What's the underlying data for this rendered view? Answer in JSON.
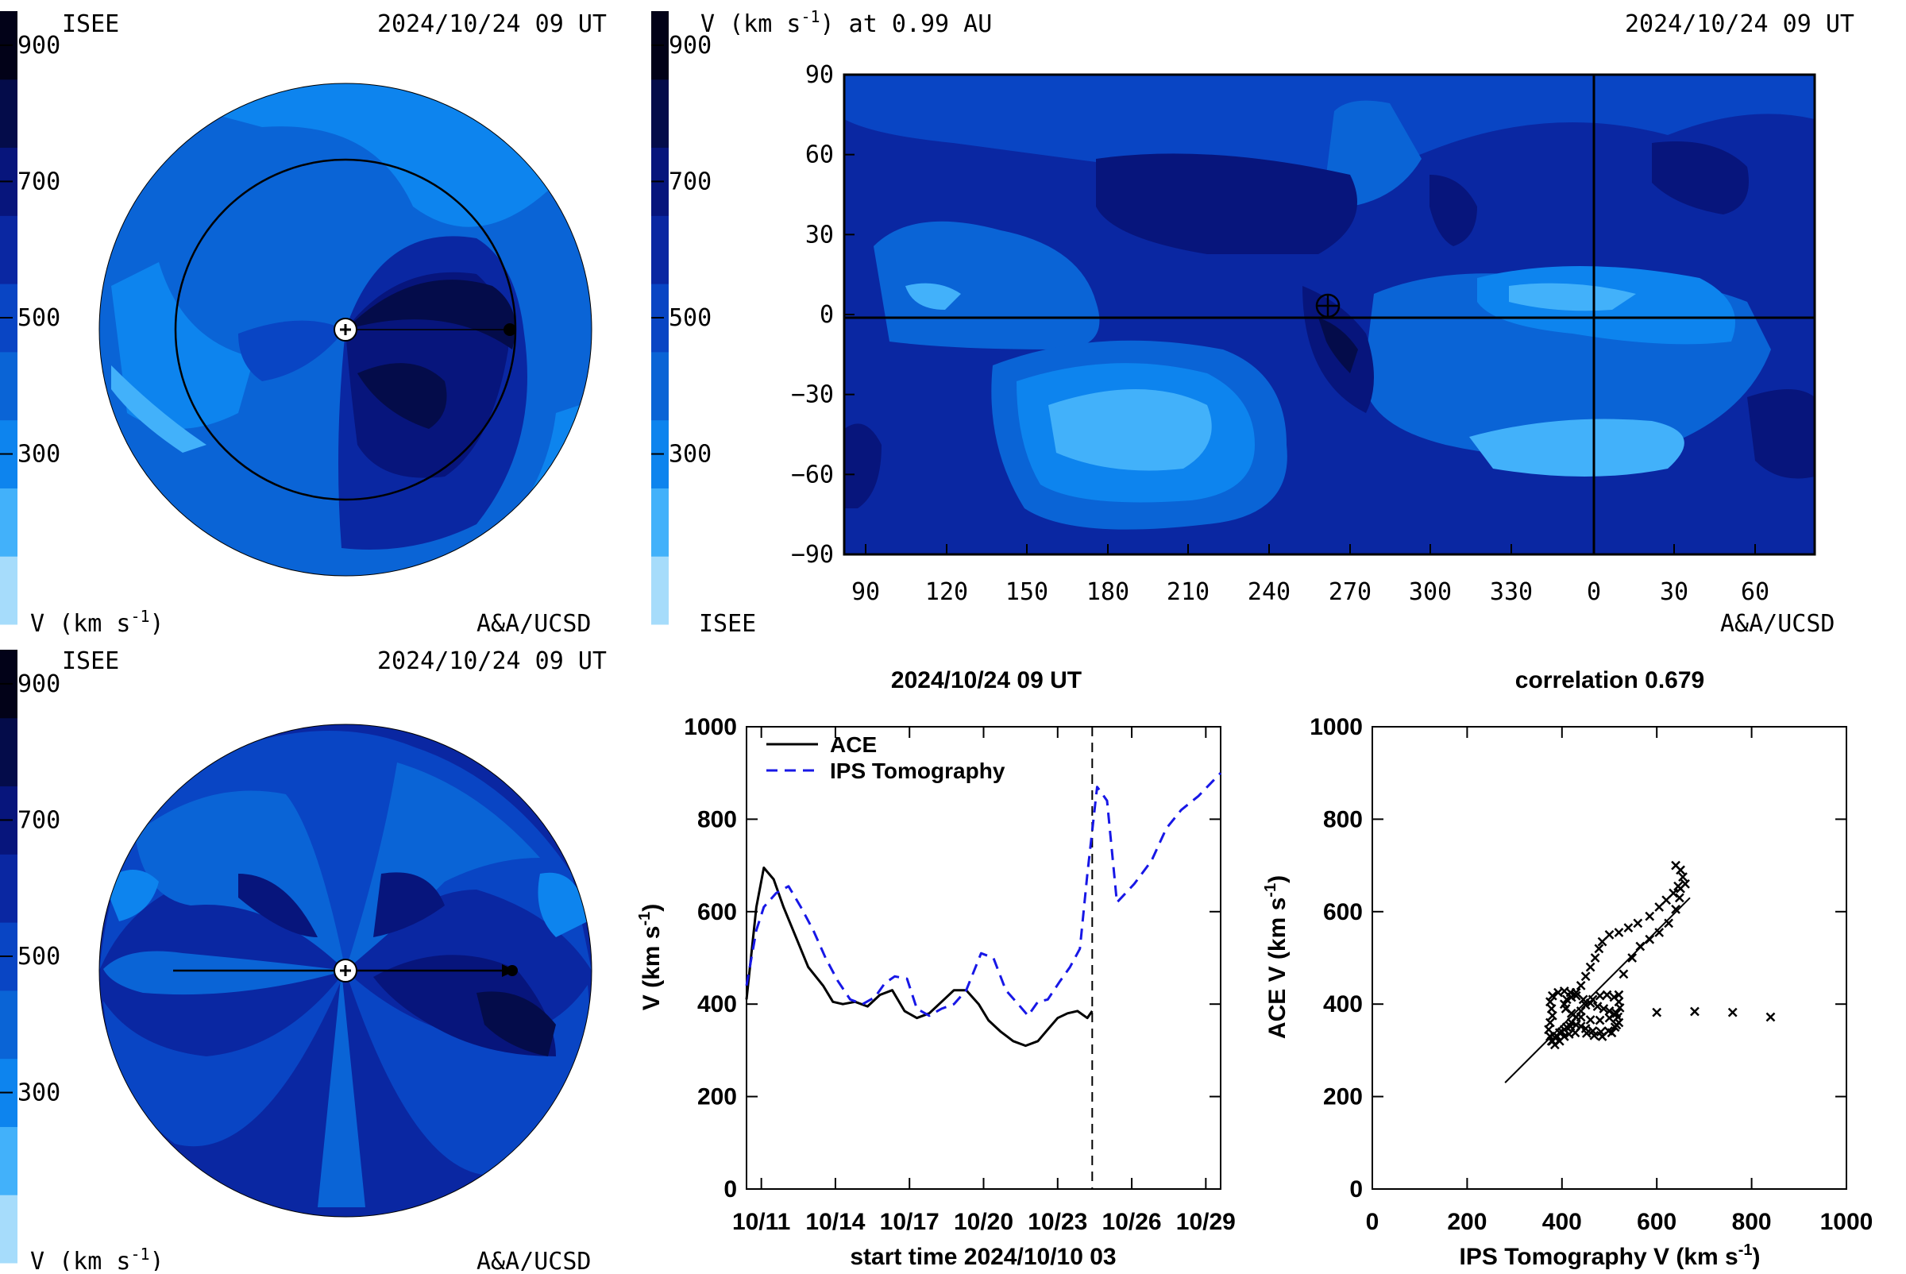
{
  "colorbar": {
    "colors": [
      "#a6dcfb",
      "#42b1fa",
      "#0d84ee",
      "#0a64d6",
      "#0945c4",
      "#0a27a2",
      "#07157c",
      "#040c4a",
      "#020218"
    ],
    "ticks": [
      "900",
      "700",
      "500",
      "300"
    ],
    "label_v": "V (km s",
    "label_v_sup": "-1",
    "label_v_tail": ")"
  },
  "panel_tl": {
    "left_label": "ISEE",
    "time": "2024/10/24 09 UT",
    "bottom_left": "V (km s",
    "bottom_left_sup": "-1",
    "bottom_left_tail": ")",
    "bottom_right": "A&A/UCSD",
    "colors": {
      "bg": "#0a64d6",
      "light": "#0d84ee",
      "lighter": "#42b1fa",
      "dark": "#0945c4",
      "darker": "#0a27a2",
      "darkest": "#07157c"
    }
  },
  "panel_tr": {
    "title_a": "V (km s",
    "title_sup": "-1",
    "title_b": ") at 0.99 AU",
    "time": "2024/10/24 09 UT",
    "bottom_left": "ISEE",
    "bottom_right": "A&A/UCSD"
  },
  "panel_bl": {
    "left_label": "ISEE",
    "time": "2024/10/24 09 UT",
    "bottom_left": "V (km s",
    "bottom_left_sup": "-1",
    "bottom_left_tail": ")",
    "bottom_right": "A&A/UCSD"
  },
  "chart_data": [
    {
      "type": "heatmap",
      "title": "V (km s-1) at 0.99 AU",
      "x_ticks": [
        "90",
        "120",
        "150",
        "180",
        "210",
        "240",
        "270",
        "300",
        "330",
        "0",
        "30",
        "60"
      ],
      "y_ticks": [
        "90",
        "60",
        "30",
        "0",
        "−30",
        "−60",
        "−90"
      ],
      "ylim": [
        -90,
        90
      ]
    },
    {
      "type": "line",
      "title": "2024/10/24 09 UT",
      "xlabel": "start time 2024/10/10 03",
      "ylabel": "V (km s",
      "ylabel_sup": "-1",
      "ylabel_tail": ")",
      "ylim": [
        0,
        1000
      ],
      "xlim": [
        10.4,
        29.6
      ],
      "x_ticks": [
        {
          "v": 11,
          "label": "10/11"
        },
        {
          "v": 14,
          "label": "10/14"
        },
        {
          "v": 17,
          "label": "10/17"
        },
        {
          "v": 20,
          "label": "10/20"
        },
        {
          "v": 23,
          "label": "10/23"
        },
        {
          "v": 26,
          "label": "10/26"
        },
        {
          "v": 29,
          "label": "10/29"
        }
      ],
      "y_ticks": [
        0,
        200,
        400,
        600,
        800,
        1000
      ],
      "now_marker": 24.4,
      "series": [
        {
          "name": "ACE",
          "color": "#000000",
          "dash": "none",
          "x": [
            10.4,
            10.8,
            11.1,
            11.5,
            11.9,
            12.4,
            12.9,
            13.5,
            13.9,
            14.3,
            14.8,
            15.3,
            15.8,
            16.3,
            16.8,
            17.3,
            17.8,
            18.3,
            18.8,
            19.3,
            19.8,
            20.2,
            20.7,
            21.2,
            21.7,
            22.2,
            22.6,
            23.0,
            23.4,
            23.8,
            24.2,
            24.4
          ],
          "y": [
            410,
            610,
            695,
            670,
            610,
            545,
            480,
            440,
            405,
            400,
            405,
            395,
            420,
            430,
            385,
            370,
            380,
            405,
            430,
            430,
            400,
            365,
            340,
            320,
            310,
            320,
            345,
            370,
            380,
            385,
            370,
            385
          ]
        },
        {
          "name": "IPS Tomography",
          "color": "#1717e6",
          "dash": "14,9",
          "x": [
            10.4,
            10.8,
            11.1,
            11.6,
            12.1,
            12.6,
            13.1,
            13.6,
            14.1,
            14.6,
            15.1,
            15.6,
            16.0,
            16.4,
            16.9,
            17.3,
            17.8,
            18.3,
            18.8,
            19.3,
            19.9,
            20.4,
            20.9,
            21.4,
            21.8,
            22.2,
            22.6,
            23.1,
            23.5,
            23.9,
            24.2,
            24.6,
            25.0,
            25.4,
            26.1,
            26.8,
            27.4,
            28.0,
            28.7,
            29.6
          ],
          "y": [
            440,
            560,
            610,
            640,
            655,
            610,
            560,
            500,
            450,
            410,
            400,
            415,
            445,
            460,
            455,
            390,
            375,
            390,
            400,
            430,
            510,
            500,
            430,
            400,
            375,
            405,
            410,
            450,
            480,
            520,
            680,
            870,
            840,
            620,
            660,
            710,
            780,
            820,
            850,
            900
          ]
        }
      ]
    },
    {
      "type": "scatter",
      "title": "correlation 0.679",
      "xlabel": "IPS Tomography V (km s",
      "xlabel_sup": "-1",
      "xlabel_tail": ")",
      "ylabel": "ACE V (km s",
      "ylabel_sup": "-1",
      "ylabel_tail": ")",
      "xlim": [
        0,
        1000
      ],
      "ylim": [
        0,
        1000
      ],
      "x_ticks": [
        0,
        200,
        400,
        600,
        800,
        1000
      ],
      "y_ticks": [
        0,
        200,
        400,
        600,
        800,
        1000
      ],
      "fit_line": {
        "x": [
          280,
          670
        ],
        "y": [
          230,
          630
        ]
      },
      "points": [
        [
          640,
          700
        ],
        [
          650,
          690
        ],
        [
          655,
          675
        ],
        [
          660,
          660
        ],
        [
          650,
          650
        ],
        [
          635,
          640
        ],
        [
          620,
          625
        ],
        [
          605,
          610
        ],
        [
          585,
          590
        ],
        [
          560,
          575
        ],
        [
          540,
          565
        ],
        [
          520,
          555
        ],
        [
          500,
          550
        ],
        [
          485,
          535
        ],
        [
          478,
          520
        ],
        [
          470,
          500
        ],
        [
          460,
          480
        ],
        [
          450,
          460
        ],
        [
          440,
          440
        ],
        [
          430,
          425
        ],
        [
          420,
          415
        ],
        [
          410,
          410
        ],
        [
          405,
          400
        ],
        [
          408,
          390
        ],
        [
          420,
          380
        ],
        [
          440,
          372
        ],
        [
          460,
          366
        ],
        [
          480,
          365
        ],
        [
          500,
          370
        ],
        [
          515,
          380
        ],
        [
          522,
          392
        ],
        [
          520,
          405
        ],
        [
          510,
          415
        ],
        [
          495,
          420
        ],
        [
          480,
          418
        ],
        [
          465,
          410
        ],
        [
          450,
          398
        ],
        [
          440,
          385
        ],
        [
          430,
          372
        ],
        [
          420,
          360
        ],
        [
          410,
          350
        ],
        [
          400,
          340
        ],
        [
          390,
          330
        ],
        [
          380,
          320
        ],
        [
          375,
          330
        ],
        [
          372,
          345
        ],
        [
          375,
          360
        ],
        [
          380,
          375
        ],
        [
          378,
          390
        ],
        [
          375,
          405
        ],
        [
          380,
          418
        ],
        [
          392,
          425
        ],
        [
          405,
          428
        ],
        [
          418,
          425
        ],
        [
          430,
          418
        ],
        [
          445,
          410
        ],
        [
          460,
          402
        ],
        [
          475,
          395
        ],
        [
          488,
          390
        ],
        [
          500,
          385
        ],
        [
          510,
          378
        ],
        [
          518,
          372
        ],
        [
          520,
          360
        ],
        [
          512,
          350
        ],
        [
          498,
          342
        ],
        [
          482,
          340
        ],
        [
          465,
          342
        ],
        [
          450,
          347
        ],
        [
          440,
          352
        ],
        [
          430,
          355
        ],
        [
          418,
          352
        ],
        [
          405,
          345
        ],
        [
          395,
          338
        ],
        [
          385,
          328
        ],
        [
          378,
          320
        ],
        [
          385,
          312
        ],
        [
          395,
          320
        ],
        [
          405,
          330
        ],
        [
          415,
          335
        ],
        [
          428,
          338
        ],
        [
          452,
          337
        ],
        [
          468,
          332
        ],
        [
          485,
          330
        ],
        [
          505,
          338
        ],
        [
          515,
          355
        ],
        [
          520,
          420
        ],
        [
          530,
          465
        ],
        [
          548,
          500
        ],
        [
          565,
          525
        ],
        [
          585,
          540
        ],
        [
          605,
          555
        ],
        [
          625,
          575
        ],
        [
          640,
          605
        ],
        [
          648,
          630
        ],
        [
          645,
          655
        ],
        [
          600,
          382
        ],
        [
          680,
          384
        ],
        [
          760,
          382
        ],
        [
          840,
          372
        ]
      ]
    }
  ]
}
